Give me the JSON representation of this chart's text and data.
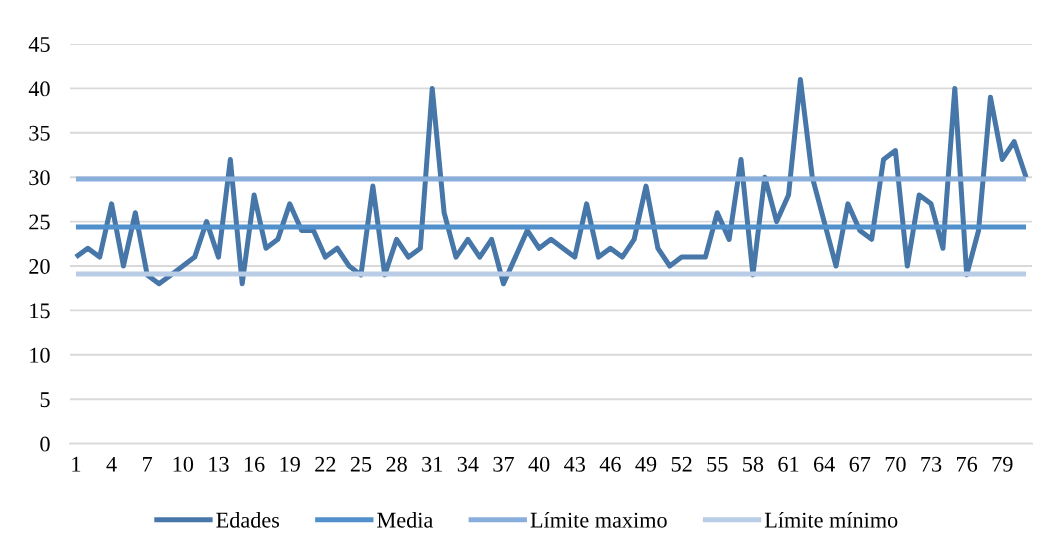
{
  "chart_data": {
    "type": "line",
    "categories": [
      "1",
      null,
      null,
      "4",
      null,
      null,
      "7",
      null,
      null,
      "10",
      null,
      null,
      "13",
      null,
      null,
      "16",
      null,
      null,
      "19",
      null,
      null,
      "22",
      null,
      null,
      "25",
      null,
      null,
      "28",
      null,
      null,
      "31",
      null,
      null,
      "34",
      null,
      null,
      "37",
      null,
      null,
      "40",
      null,
      null,
      "43",
      null,
      null,
      "46",
      null,
      null,
      "49",
      null,
      null,
      "52",
      null,
      null,
      "55",
      null,
      null,
      "58",
      null,
      null,
      "61",
      null,
      null,
      "64",
      null,
      null,
      "67",
      null,
      null,
      "70",
      null,
      null,
      "73",
      null,
      null,
      "76",
      null,
      null,
      "79",
      null,
      null
    ],
    "series": [
      {
        "name": "Edades",
        "color": "#4677a8",
        "values": [
          21,
          22,
          21,
          27,
          20,
          26,
          19,
          18,
          19,
          20,
          21,
          25,
          21,
          32,
          18,
          28,
          22,
          23,
          27,
          24,
          24,
          21,
          22,
          20,
          19,
          29,
          19,
          23,
          21,
          22,
          40,
          26,
          21,
          23,
          21,
          23,
          18,
          21,
          24,
          22,
          23,
          22,
          21,
          27,
          21,
          22,
          21,
          23,
          29,
          22,
          20,
          21,
          21,
          21,
          26,
          23,
          32,
          19,
          30,
          25,
          28,
          41,
          30,
          25,
          20,
          27,
          24,
          23,
          32,
          33,
          20,
          28,
          27,
          22,
          40,
          19,
          24,
          39,
          32,
          34,
          30
        ]
      },
      {
        "name": "Media",
        "color": "#5190cb",
        "values": [
          24.4,
          24.4,
          24.4,
          24.4,
          24.4,
          24.4,
          24.4,
          24.4,
          24.4,
          24.4,
          24.4,
          24.4,
          24.4,
          24.4,
          24.4,
          24.4,
          24.4,
          24.4,
          24.4,
          24.4,
          24.4,
          24.4,
          24.4,
          24.4,
          24.4,
          24.4,
          24.4,
          24.4,
          24.4,
          24.4,
          24.4,
          24.4,
          24.4,
          24.4,
          24.4,
          24.4,
          24.4,
          24.4,
          24.4,
          24.4,
          24.4,
          24.4,
          24.4,
          24.4,
          24.4,
          24.4,
          24.4,
          24.4,
          24.4,
          24.4,
          24.4,
          24.4,
          24.4,
          24.4,
          24.4,
          24.4,
          24.4,
          24.4,
          24.4,
          24.4,
          24.4,
          24.4,
          24.4,
          24.4,
          24.4,
          24.4,
          24.4,
          24.4,
          24.4,
          24.4,
          24.4,
          24.4,
          24.4,
          24.4,
          24.4,
          24.4,
          24.4,
          24.4,
          24.4,
          24.4,
          24.4
        ]
      },
      {
        "name": "Límite maximo",
        "color": "#88aedb",
        "values": [
          29.8,
          29.8,
          29.8,
          29.8,
          29.8,
          29.8,
          29.8,
          29.8,
          29.8,
          29.8,
          29.8,
          29.8,
          29.8,
          29.8,
          29.8,
          29.8,
          29.8,
          29.8,
          29.8,
          29.8,
          29.8,
          29.8,
          29.8,
          29.8,
          29.8,
          29.8,
          29.8,
          29.8,
          29.8,
          29.8,
          29.8,
          29.8,
          29.8,
          29.8,
          29.8,
          29.8,
          29.8,
          29.8,
          29.8,
          29.8,
          29.8,
          29.8,
          29.8,
          29.8,
          29.8,
          29.8,
          29.8,
          29.8,
          29.8,
          29.8,
          29.8,
          29.8,
          29.8,
          29.8,
          29.8,
          29.8,
          29.8,
          29.8,
          29.8,
          29.8,
          29.8,
          29.8,
          29.8,
          29.8,
          29.8,
          29.8,
          29.8,
          29.8,
          29.8,
          29.8,
          29.8,
          29.8,
          29.8,
          29.8,
          29.8,
          29.8,
          29.8,
          29.8,
          29.8,
          29.8,
          29.8
        ]
      },
      {
        "name": "Límite mínimo",
        "color": "#b9cde7",
        "values": [
          19.1,
          19.1,
          19.1,
          19.1,
          19.1,
          19.1,
          19.1,
          19.1,
          19.1,
          19.1,
          19.1,
          19.1,
          19.1,
          19.1,
          19.1,
          19.1,
          19.1,
          19.1,
          19.1,
          19.1,
          19.1,
          19.1,
          19.1,
          19.1,
          19.1,
          19.1,
          19.1,
          19.1,
          19.1,
          19.1,
          19.1,
          19.1,
          19.1,
          19.1,
          19.1,
          19.1,
          19.1,
          19.1,
          19.1,
          19.1,
          19.1,
          19.1,
          19.1,
          19.1,
          19.1,
          19.1,
          19.1,
          19.1,
          19.1,
          19.1,
          19.1,
          19.1,
          19.1,
          19.1,
          19.1,
          19.1,
          19.1,
          19.1,
          19.1,
          19.1,
          19.1,
          19.1,
          19.1,
          19.1,
          19.1,
          19.1,
          19.1,
          19.1,
          19.1,
          19.1,
          19.1,
          19.1,
          19.1,
          19.1,
          19.1,
          19.1,
          19.1,
          19.1,
          19.1,
          19.1,
          19.1
        ]
      }
    ],
    "ylim": [
      0,
      45
    ],
    "yticks": [
      0,
      5,
      10,
      15,
      20,
      25,
      30,
      35,
      40,
      45
    ],
    "grid": "y",
    "legend": "bottom",
    "marker": "none",
    "line_style": "solid"
  }
}
